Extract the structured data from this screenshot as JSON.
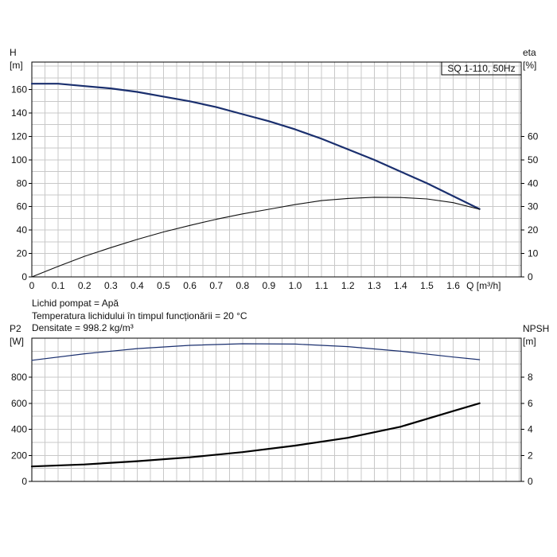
{
  "notes": [
    "Lichid pompat = Apă",
    "Temperatura lichidului în timpul funcționării = 20 °C",
    "Densitate = 998.2 kg/m³"
  ],
  "chart_data": [
    {
      "type": "line",
      "title": "SQ 1-110, 50Hz",
      "xlabel": "Q [m³/h]",
      "ylabel_left": [
        "H",
        "[m]"
      ],
      "ylabel_right": [
        "eta",
        "[%]"
      ],
      "xlim": [
        0,
        1.7
      ],
      "x_ticks": [
        "0",
        "0.1",
        "0.2",
        "0.3",
        "0.4",
        "0.5",
        "0.6",
        "0.7",
        "0.8",
        "0.9",
        "1.0",
        "1.1",
        "1.2",
        "1.3",
        "1.4",
        "1.5",
        "1.6"
      ],
      "ylim_left": [
        0,
        180
      ],
      "y_ticks_left": [
        "0",
        "20",
        "40",
        "60",
        "80",
        "100",
        "120",
        "140",
        "160"
      ],
      "ylim_right": [
        0,
        90
      ],
      "y_ticks_right": [
        "0",
        "10",
        "20",
        "30",
        "40",
        "50",
        "60"
      ],
      "grid": true,
      "series": [
        {
          "axis": "left",
          "color": "#1a2f6e",
          "width": 2.2,
          "x": [
            0,
            0.1,
            0.2,
            0.3,
            0.4,
            0.5,
            0.6,
            0.7,
            0.8,
            0.9,
            1.0,
            1.1,
            1.2,
            1.3,
            1.4,
            1.5,
            1.6,
            1.7
          ],
          "y": [
            165,
            165,
            163,
            161,
            158,
            154,
            150,
            145,
            139,
            133,
            126,
            118,
            109,
            100,
            90,
            80,
            69,
            58
          ]
        },
        {
          "axis": "right",
          "color": "#111111",
          "width": 1.1,
          "x": [
            0,
            0.1,
            0.2,
            0.3,
            0.4,
            0.5,
            0.6,
            0.7,
            0.8,
            0.9,
            1.0,
            1.1,
            1.2,
            1.3,
            1.4,
            1.5,
            1.6,
            1.7
          ],
          "y": [
            0,
            4.5,
            8.8,
            12.5,
            16,
            19.2,
            22,
            24.6,
            26.9,
            28.9,
            30.9,
            32.6,
            33.5,
            34,
            33.9,
            33.3,
            31.7,
            28.9
          ]
        }
      ]
    },
    {
      "type": "line",
      "ylabel_left": [
        "P2",
        "[W]"
      ],
      "ylabel_right": [
        "NPSH",
        "[m]"
      ],
      "xlim": [
        0,
        1.7
      ],
      "ylim_left": [
        0,
        1100
      ],
      "y_ticks_left": [
        "0",
        "200",
        "400",
        "600",
        "800"
      ],
      "ylim_right": [
        0,
        11
      ],
      "y_ticks_right": [
        "0",
        "2",
        "4",
        "6",
        "8"
      ],
      "grid": true,
      "series": [
        {
          "axis": "left",
          "color": "#1a2f6e",
          "width": 1.2,
          "x": [
            0,
            0.2,
            0.4,
            0.6,
            0.8,
            1.0,
            1.2,
            1.4,
            1.6,
            1.7
          ],
          "y": [
            930,
            980,
            1020,
            1045,
            1057,
            1055,
            1035,
            1000,
            955,
            935
          ]
        },
        {
          "axis": "right",
          "color": "#000000",
          "width": 2.2,
          "x": [
            0,
            0.2,
            0.4,
            0.6,
            0.8,
            1.0,
            1.2,
            1.4,
            1.6,
            1.7
          ],
          "y": [
            1.15,
            1.3,
            1.55,
            1.85,
            2.25,
            2.75,
            3.35,
            4.2,
            5.4,
            6.0
          ]
        }
      ]
    }
  ]
}
